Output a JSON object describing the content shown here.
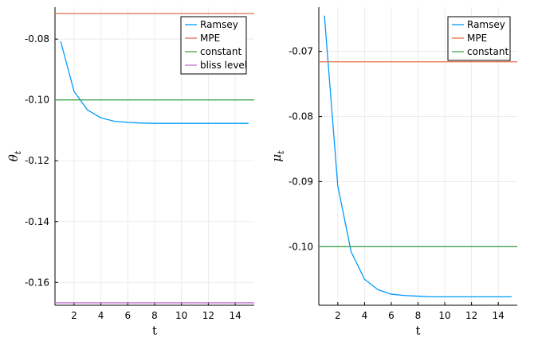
{
  "colors": {
    "ramsey": "#009AFA",
    "mpe": "#E26F46",
    "constant": "#3EA44E",
    "bliss": "#C271D2",
    "grid": "#e8e8e8",
    "axis": "#000000"
  },
  "chart_data": [
    {
      "type": "line",
      "xlabel": "t",
      "ylabel": "θ",
      "ylabel_subscript": "t",
      "xlim": [
        0.58,
        15.42
      ],
      "ylim": [
        -0.1675,
        -0.0695
      ],
      "xticks": [
        2,
        4,
        6,
        8,
        10,
        12,
        14
      ],
      "xtick_labels": [
        "2",
        "4",
        "6",
        "8",
        "10",
        "12",
        "14"
      ],
      "yticks": [
        -0.08,
        -0.1,
        -0.12,
        -0.14,
        -0.16
      ],
      "ytick_labels": [
        "-0.08",
        "-0.10",
        "-0.12",
        "-0.14",
        "-0.16"
      ],
      "grid": true,
      "legend_position": "top-right",
      "series": [
        {
          "name": "Ramsey",
          "color_key": "ramsey",
          "kind": "line",
          "x": [
            1,
            2,
            3,
            4,
            5,
            6,
            7,
            8,
            9,
            10,
            11,
            12,
            13,
            14,
            15
          ],
          "y": [
            -0.0807,
            -0.0972,
            -0.1033,
            -0.1059,
            -0.107,
            -0.1074,
            -0.1076,
            -0.1077,
            -0.1077,
            -0.1077,
            -0.1077,
            -0.1077,
            -0.1077,
            -0.1077,
            -0.1077
          ]
        },
        {
          "name": "MPE",
          "color_key": "mpe",
          "kind": "hline",
          "y": -0.0716
        },
        {
          "name": "constant",
          "color_key": "constant",
          "kind": "hline",
          "y": -0.1
        },
        {
          "name": "bliss level",
          "color_key": "bliss",
          "kind": "hline",
          "y": -0.1667
        }
      ]
    },
    {
      "type": "line",
      "xlabel": "t",
      "ylabel": "μ",
      "ylabel_subscript": "t",
      "xlim": [
        0.58,
        15.42
      ],
      "ylim": [
        -0.109,
        -0.0632
      ],
      "xticks": [
        2,
        4,
        6,
        8,
        10,
        12,
        14
      ],
      "xtick_labels": [
        "2",
        "4",
        "6",
        "8",
        "10",
        "12",
        "14"
      ],
      "yticks": [
        -0.07,
        -0.08,
        -0.09,
        -0.1
      ],
      "ytick_labels": [
        "-0.07",
        "-0.08",
        "-0.09",
        "-0.10"
      ],
      "grid": true,
      "legend_position": "top-right",
      "series": [
        {
          "name": "Ramsey",
          "color_key": "ramsey",
          "kind": "line",
          "x": [
            1,
            2,
            3,
            4,
            5,
            6,
            7,
            8,
            9,
            10,
            11,
            12,
            13,
            14,
            15
          ],
          "y": [
            -0.0645,
            -0.0907,
            -0.1008,
            -0.105,
            -0.1066,
            -0.1073,
            -0.1075,
            -0.1076,
            -0.1077,
            -0.1077,
            -0.1077,
            -0.1077,
            -0.1077,
            -0.1077,
            -0.1077
          ]
        },
        {
          "name": "MPE",
          "color_key": "mpe",
          "kind": "hline",
          "y": -0.0716
        },
        {
          "name": "constant",
          "color_key": "constant",
          "kind": "hline",
          "y": -0.1
        }
      ]
    }
  ]
}
